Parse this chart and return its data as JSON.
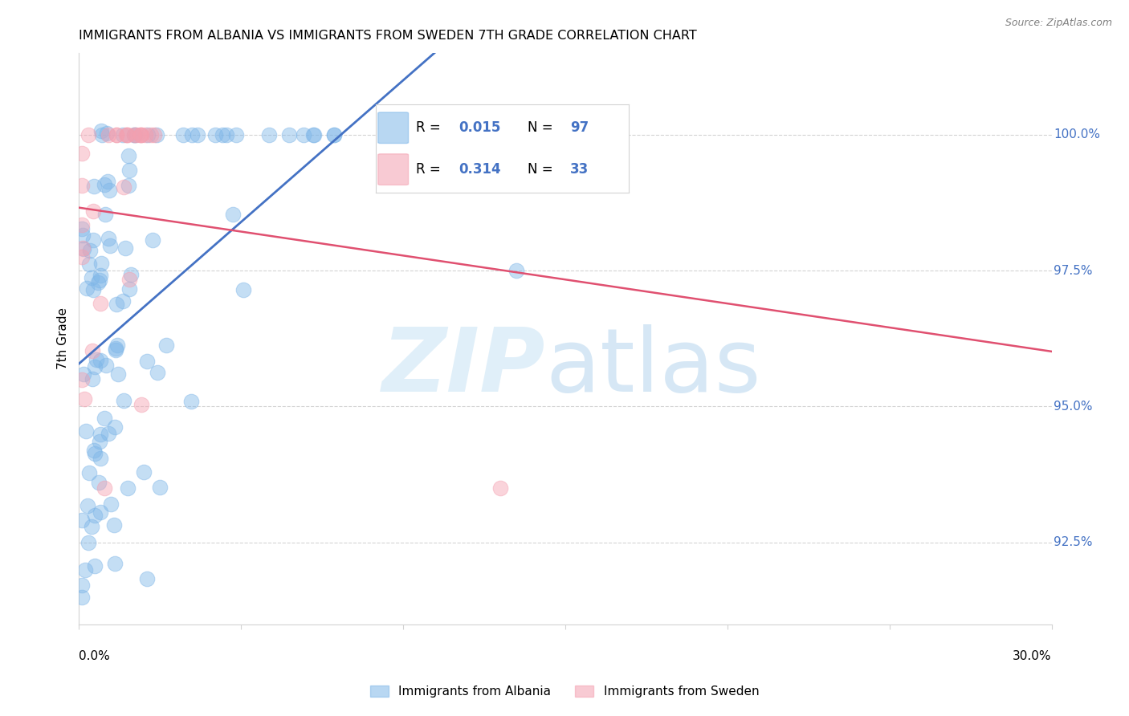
{
  "title": "IMMIGRANTS FROM ALBANIA VS IMMIGRANTS FROM SWEDEN 7TH GRADE CORRELATION CHART",
  "source": "Source: ZipAtlas.com",
  "ylabel": "7th Grade",
  "y_ticks": [
    92.5,
    95.0,
    97.5,
    100.0
  ],
  "y_tick_labels": [
    "92.5%",
    "95.0%",
    "97.5%",
    "100.0%"
  ],
  "xlim": [
    0.0,
    0.3
  ],
  "ylim": [
    91.0,
    101.5
  ],
  "legend_R_albania": "0.015",
  "legend_N_albania": "97",
  "legend_R_sweden": "0.314",
  "legend_N_sweden": "33",
  "color_albania": "#7EB6E8",
  "color_sweden": "#F4A0B0",
  "trendline_albania_color": "#4472C4",
  "trendline_sweden_color": "#E05070",
  "cutoff_solid": 0.23
}
